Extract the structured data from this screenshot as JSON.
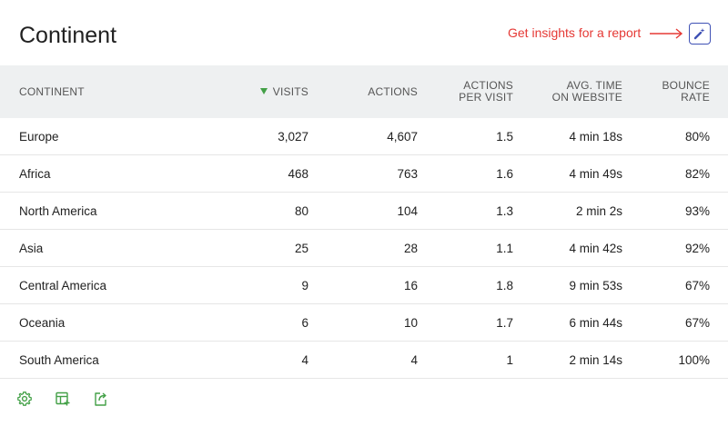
{
  "header": {
    "title": "Continent",
    "insight_note": "Get insights for a report"
  },
  "table": {
    "columns": [
      {
        "label": "CONTINENT"
      },
      {
        "label": "VISITS",
        "sorted": "desc"
      },
      {
        "label": "ACTIONS"
      },
      {
        "label": "ACTIONS PER VISIT"
      },
      {
        "label": "AVG. TIME ON WEBSITE"
      },
      {
        "label": "BOUNCE RATE"
      }
    ],
    "rows": [
      {
        "continent": "Europe",
        "visits": "3,027",
        "actions": "4,607",
        "per_visit": "1.5",
        "avg_time": "4 min 18s",
        "bounce": "80%"
      },
      {
        "continent": "Africa",
        "visits": "468",
        "actions": "763",
        "per_visit": "1.6",
        "avg_time": "4 min 49s",
        "bounce": "82%"
      },
      {
        "continent": "North America",
        "visits": "80",
        "actions": "104",
        "per_visit": "1.3",
        "avg_time": "2 min 2s",
        "bounce": "93%"
      },
      {
        "continent": "Asia",
        "visits": "25",
        "actions": "28",
        "per_visit": "1.1",
        "avg_time": "4 min 42s",
        "bounce": "92%"
      },
      {
        "continent": "Central America",
        "visits": "9",
        "actions": "16",
        "per_visit": "1.8",
        "avg_time": "9 min 53s",
        "bounce": "67%"
      },
      {
        "continent": "Oceania",
        "visits": "6",
        "actions": "10",
        "per_visit": "1.7",
        "avg_time": "6 min 44s",
        "bounce": "67%"
      },
      {
        "continent": "South America",
        "visits": "4",
        "actions": "4",
        "per_visit": "1",
        "avg_time": "2 min 14s",
        "bounce": "100%"
      }
    ]
  },
  "footer": {
    "icons": [
      "gear-icon",
      "table-add-icon",
      "export-icon"
    ]
  },
  "colors": {
    "accent_green": "#43a047",
    "note_red": "#e53935",
    "insight_blue": "#3f51b5",
    "header_bg": "#eef0f1"
  }
}
